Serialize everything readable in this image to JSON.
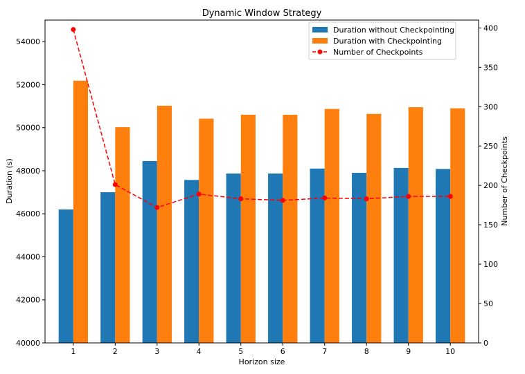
{
  "chart_data": {
    "type": "bar",
    "title": "Dynamic Window Strategy",
    "xlabel": "Horizon size",
    "ylabel": "Duration (s)",
    "y2label": "Number of Checkpoints",
    "categories": [
      "1",
      "2",
      "3",
      "4",
      "5",
      "6",
      "7",
      "8",
      "9",
      "10"
    ],
    "ylim": [
      40000,
      55000
    ],
    "y_ticks": [
      40000,
      42000,
      44000,
      46000,
      48000,
      50000,
      52000,
      54000
    ],
    "y2lim": [
      0,
      410
    ],
    "y2_ticks": [
      0,
      50,
      100,
      150,
      200,
      250,
      300,
      350,
      400
    ],
    "legend_position": "top-right",
    "grid": false,
    "series": [
      {
        "name": "Duration without Checkpointing",
        "kind": "bar",
        "axis": "left",
        "color": "#1f77b4",
        "values": [
          46200,
          47000,
          48450,
          47570,
          47870,
          47870,
          48100,
          47900,
          48130,
          48080
        ]
      },
      {
        "name": "Duration with Checkpointing",
        "kind": "bar",
        "axis": "left",
        "color": "#ff7f0e",
        "values": [
          52180,
          50020,
          51020,
          50420,
          50600,
          50600,
          50870,
          50640,
          50950,
          50900
        ]
      },
      {
        "name": "Number of Checkpoints",
        "kind": "line",
        "axis": "right",
        "color": "#ff0000",
        "line_style": "dashed",
        "marker": "circle",
        "values": [
          398,
          201,
          172,
          189,
          183,
          181,
          184,
          183,
          186,
          186
        ]
      }
    ]
  }
}
